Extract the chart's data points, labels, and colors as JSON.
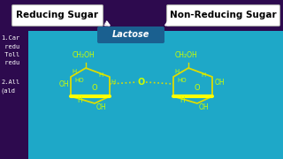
{
  "bg_purple": "#2d0a4e",
  "bg_cyan": "#1ea8c8",
  "lactose_box_color": "#1a6090",
  "lactose_text": "Lactose",
  "reducing_label": "Reducing Sugar",
  "non_reducing_label": "Non-Reducing Sugar",
  "left_text_lines": [
    "1.Car",
    " redu",
    " Toll",
    " redu",
    "",
    "2.All",
    "(ald"
  ],
  "label_box_bg": "#ffffff",
  "label_box_text_color": "#000000",
  "arrow_color": "#ffffff",
  "mol_line_color": "#dddd00",
  "mol_text_color": "#ccff00",
  "highlight_color": "#ffff00",
  "figsize": [
    3.2,
    1.8
  ],
  "dpi": 100
}
